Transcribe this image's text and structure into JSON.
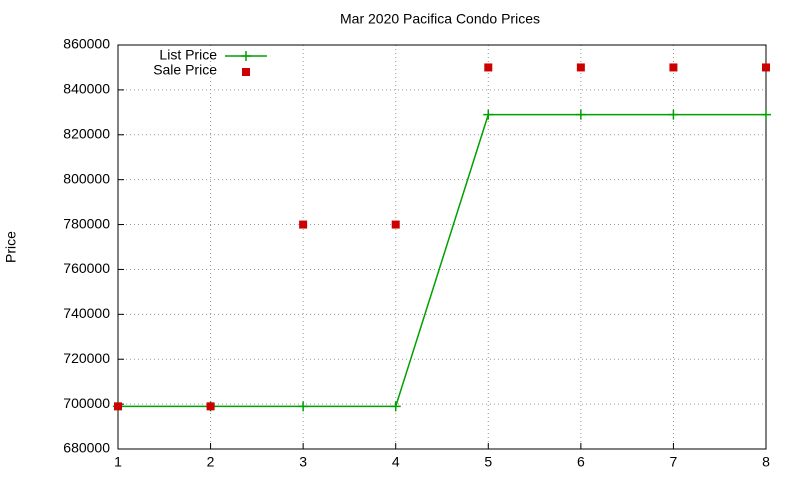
{
  "chart_data": {
    "type": "line",
    "title": "Mar 2020 Pacifica Condo Prices",
    "y_label": "Price",
    "x": [
      1,
      2,
      3,
      4,
      5,
      6,
      7,
      8
    ],
    "series": [
      {
        "name": "List Price",
        "color": "#00a000",
        "style": "linespoints",
        "values": [
          699000,
          699000,
          699000,
          699000,
          829000,
          829000,
          829000,
          829000
        ]
      },
      {
        "name": "Sale Price",
        "color": "#cc0000",
        "style": "points",
        "values": [
          699000,
          699000,
          780000,
          780000,
          850000,
          850000,
          850000,
          850000
        ]
      }
    ],
    "xlim": [
      1,
      8
    ],
    "xticks": [
      1,
      2,
      3,
      4,
      5,
      6,
      7,
      8
    ],
    "ylim": [
      680000,
      860000
    ],
    "yticks": [
      680000,
      700000,
      720000,
      740000,
      760000,
      780000,
      800000,
      820000,
      840000,
      860000
    ],
    "grid": true,
    "legend": "top-left"
  }
}
